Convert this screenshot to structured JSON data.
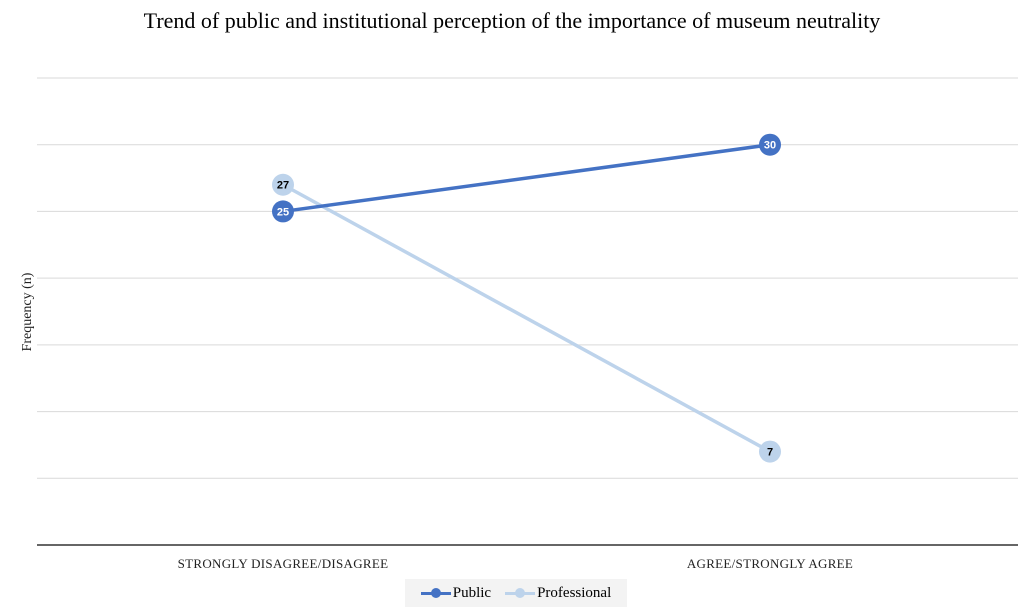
{
  "chart_data": {
    "type": "line",
    "title": "Trend of public and institutional perception of the importance of museum neutrality",
    "xlabel": "",
    "ylabel": "Frequency (n)",
    "categories": [
      "STRONGLY DISAGREE/DISAGREE",
      "AGREE/STRONGLY AGREE"
    ],
    "ylim": [
      0,
      35
    ],
    "grid": true,
    "legend": "bottom",
    "series": [
      {
        "name": "Public",
        "values": [
          25,
          30
        ],
        "color": "#4472c4",
        "label_color": "#ffffff"
      },
      {
        "name": "Professional",
        "values": [
          27,
          7
        ],
        "color": "#bdd3eb",
        "label_color": "#000000"
      }
    ]
  }
}
